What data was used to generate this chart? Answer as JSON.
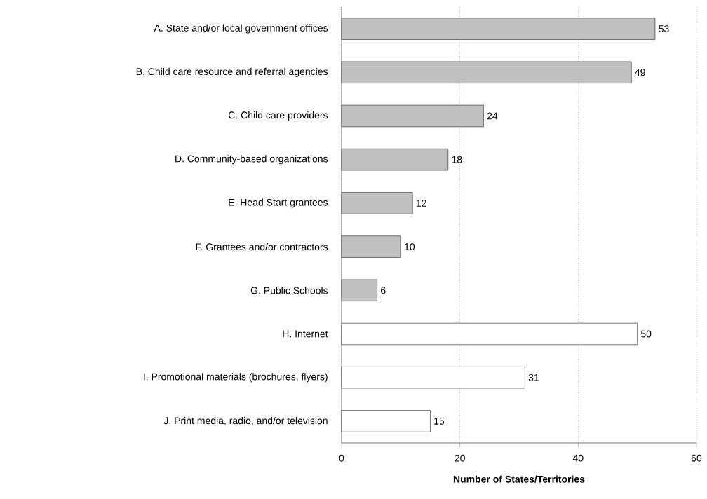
{
  "chart_data": {
    "type": "bar",
    "orientation": "horizontal",
    "xlabel": "Number of States/Territories",
    "categories": [
      "A. State and/or local government offices",
      "B. Child care resource and referral agencies",
      "C. Child care providers",
      "D. Community-based organizations",
      "E. Head Start grantees",
      "F. Grantees and/or contractors",
      "G. Public Schools",
      "H. Internet",
      "I. Promotional materials (brochures, flyers)",
      "J. Print media, radio, and/or television"
    ],
    "values": [
      53,
      49,
      24,
      18,
      12,
      10,
      6,
      50,
      31,
      15
    ],
    "colors": [
      "#c0c0c0",
      "#c0c0c0",
      "#c0c0c0",
      "#c0c0c0",
      "#c0c0c0",
      "#c0c0c0",
      "#c0c0c0",
      "#ffffff",
      "#ffffff",
      "#ffffff"
    ],
    "xlim": [
      0,
      60
    ],
    "xticks": [
      0,
      20,
      40,
      60
    ],
    "grid": "x",
    "data_labels": true
  }
}
